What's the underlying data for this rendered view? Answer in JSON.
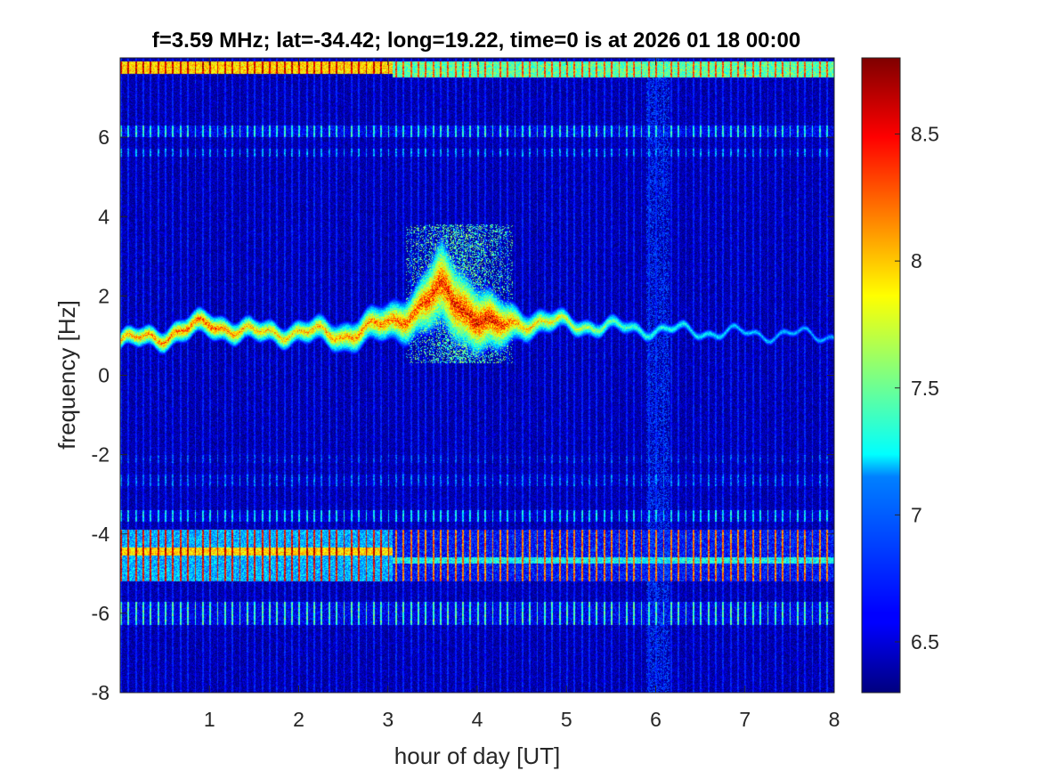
{
  "chart_data": {
    "type": "heatmap",
    "title": "f=3.59 MHz;  lat=-34.42; long=19.22, time=0 is at 2026 01 18 00:00",
    "xlabel": "hour of day [UT]",
    "ylabel": "frequency [Hz]",
    "xlim": [
      0,
      8
    ],
    "ylim": [
      -8,
      8
    ],
    "x_ticks": [
      1,
      2,
      3,
      4,
      5,
      6,
      7,
      8
    ],
    "x_tick_labels": [
      "1",
      "2",
      "3",
      "4",
      "5",
      "6",
      "7",
      "8"
    ],
    "y_ticks": [
      -8,
      -6,
      -4,
      -2,
      0,
      2,
      4,
      6
    ],
    "y_tick_labels": [
      "-8",
      "-6",
      "-4",
      "-2",
      "0",
      "2",
      "4",
      "6"
    ],
    "colormap": "jet",
    "clim": [
      6.3,
      8.8
    ],
    "colorbar_ticks": [
      6.5,
      7,
      7.5,
      8,
      8.5
    ],
    "colorbar_tick_labels": [
      "6.5",
      "7",
      "7.5",
      "8",
      "8.5"
    ],
    "background_level": 6.4,
    "doppler_trace": [
      {
        "x": 0.0,
        "y": 0.85,
        "peak": 8.2,
        "width": 0.25
      },
      {
        "x": 0.5,
        "y": 1.0,
        "peak": 8.3,
        "width": 0.3
      },
      {
        "x": 1.0,
        "y": 1.3,
        "peak": 8.4,
        "width": 0.35
      },
      {
        "x": 1.5,
        "y": 1.05,
        "peak": 8.1,
        "width": 0.3
      },
      {
        "x": 2.0,
        "y": 1.1,
        "peak": 8.1,
        "width": 0.3
      },
      {
        "x": 2.5,
        "y": 1.0,
        "peak": 8.2,
        "width": 0.4
      },
      {
        "x": 3.0,
        "y": 1.3,
        "peak": 8.3,
        "width": 0.5
      },
      {
        "x": 3.3,
        "y": 1.6,
        "peak": 8.4,
        "width": 0.7
      },
      {
        "x": 3.6,
        "y": 2.2,
        "peak": 8.5,
        "width": 1.2
      },
      {
        "x": 3.9,
        "y": 1.6,
        "peak": 8.6,
        "width": 1.0
      },
      {
        "x": 4.2,
        "y": 1.2,
        "peak": 8.6,
        "width": 0.8
      },
      {
        "x": 4.5,
        "y": 1.35,
        "peak": 8.1,
        "width": 0.4
      },
      {
        "x": 5.0,
        "y": 1.3,
        "peak": 7.9,
        "width": 0.25
      },
      {
        "x": 5.5,
        "y": 1.2,
        "peak": 7.6,
        "width": 0.2
      },
      {
        "x": 6.0,
        "y": 1.15,
        "peak": 7.4,
        "width": 0.15
      },
      {
        "x": 7.0,
        "y": 1.05,
        "peak": 7.2,
        "width": 0.1
      },
      {
        "x": 8.0,
        "y": 1.0,
        "peak": 7.1,
        "width": 0.1
      }
    ],
    "spread_region": {
      "x": [
        3.2,
        4.4
      ],
      "y": [
        0.3,
        3.8
      ],
      "level": 7.2
    },
    "vertical_stripes": {
      "period_hours": 0.0833,
      "level": 6.9
    },
    "vertical_stripes_after_3h": {
      "period_hours": 0.0833,
      "level": 6.9
    },
    "weak_time_band": {
      "x": [
        5.9,
        6.15
      ],
      "level": 6.7
    },
    "horizontal_bands": [
      {
        "y": [
          7.6,
          7.9
        ],
        "level": 8.3,
        "x_range": [
          0,
          3.05
        ],
        "stripe_level": 8.6
      },
      {
        "y": [
          7.5,
          7.9
        ],
        "level": 7.8,
        "x_range": [
          3.05,
          8
        ],
        "stripe_level": 8.3
      },
      {
        "y": [
          6.0,
          6.3
        ],
        "level": 6.9,
        "x_range": [
          0,
          8
        ],
        "stripe_level": 7.3
      },
      {
        "y": [
          5.5,
          5.7
        ],
        "level": 6.7,
        "x_range": [
          0,
          8
        ],
        "stripe_level": 7.0
      },
      {
        "y": [
          -3.7,
          -3.4
        ],
        "level": 6.8,
        "x_range": [
          0,
          8
        ],
        "stripe_level": 7.2
      },
      {
        "y": [
          -5.2,
          -3.9
        ],
        "level": 7.4,
        "x_range": [
          0,
          3.05
        ],
        "stripe_level": 8.5
      },
      {
        "y": [
          -5.2,
          -3.9
        ],
        "level": 7.0,
        "x_range": [
          3.05,
          8
        ],
        "stripe_level": 8.2
      },
      {
        "y": [
          -4.75,
          -4.6
        ],
        "level": 7.6,
        "x_range": [
          3.05,
          8
        ],
        "stripe_level": 7.9
      },
      {
        "y": [
          -4.55,
          -4.35
        ],
        "level": 8.3,
        "x_range": [
          0,
          3.05
        ],
        "stripe_level": 8.6
      },
      {
        "y": [
          -6.3,
          -5.7
        ],
        "level": 6.9,
        "x_range": [
          0,
          8
        ],
        "stripe_level": 7.4
      },
      {
        "y": [
          -2.8,
          -2.5
        ],
        "level": 6.7,
        "x_range": [
          0,
          8
        ],
        "stripe_level": 6.9
      },
      {
        "y": [
          -2.2,
          -2.0
        ],
        "level": 6.6,
        "x_range": [
          0,
          8
        ],
        "stripe_level": 6.8
      }
    ]
  }
}
